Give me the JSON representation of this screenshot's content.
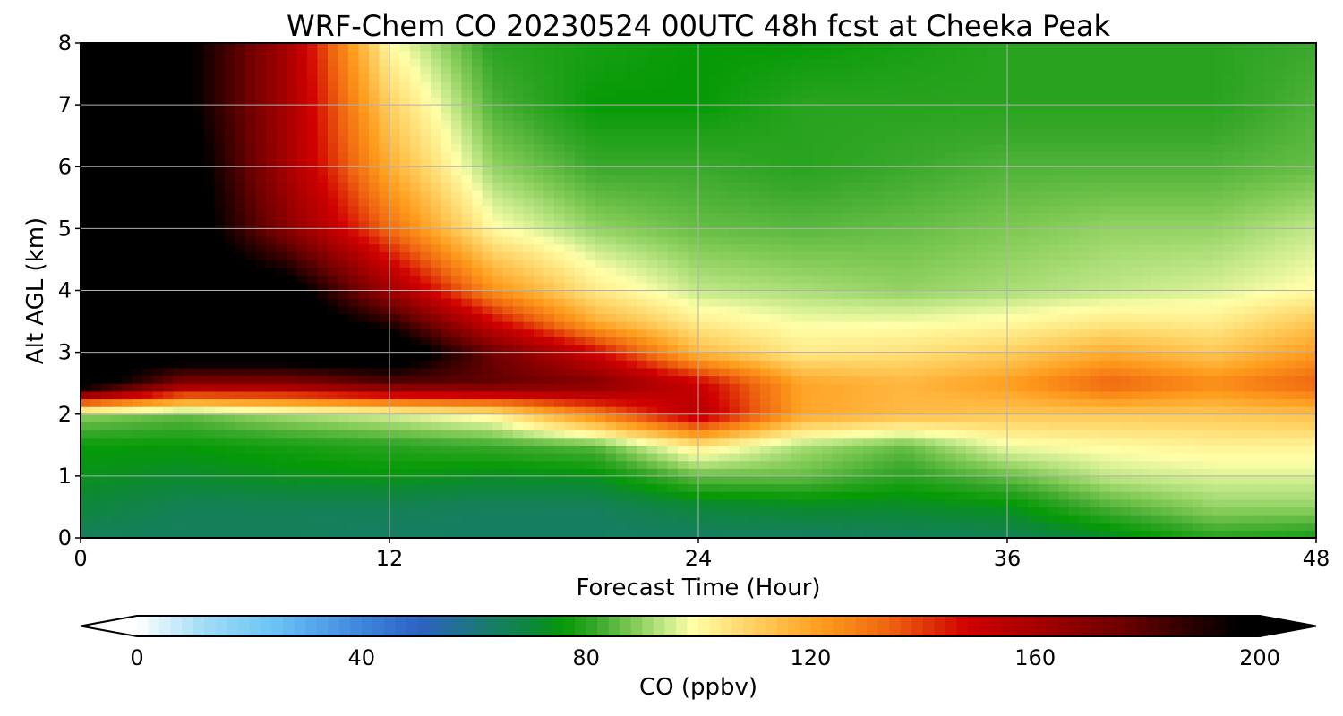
{
  "chart_data": {
    "type": "heatmap",
    "title": "WRF-Chem CO  20230524 00UTC 48h fcst at Cheeka Peak",
    "xlabel": "Forecast Time (Hour)",
    "ylabel": "Alt AGL (km)",
    "xlim": [
      0,
      48
    ],
    "ylim": [
      0,
      8
    ],
    "x_ticks": [
      0,
      12,
      24,
      36,
      48
    ],
    "y_ticks": [
      0,
      1,
      2,
      3,
      4,
      5,
      6,
      7,
      8
    ],
    "x_tick_labels": [
      "0",
      "12",
      "24",
      "36",
      "48"
    ],
    "y_tick_labels": [
      "0",
      "1",
      "2",
      "3",
      "4",
      "5",
      "6",
      "7",
      "8"
    ],
    "grid": true,
    "colorbar": {
      "label": "CO  (ppbv)",
      "min": 0,
      "max": 200,
      "ticks": [
        0,
        40,
        80,
        120,
        160,
        200
      ],
      "tick_labels": [
        "0",
        "40",
        "80",
        "120",
        "160",
        "200"
      ],
      "extend": "both",
      "orientation": "horizontal",
      "stops": [
        {
          "v": 0,
          "c": "#ffffff"
        },
        {
          "v": 12,
          "c": "#a0dcf5"
        },
        {
          "v": 24,
          "c": "#6cc5f6"
        },
        {
          "v": 40,
          "c": "#3f85dc"
        },
        {
          "v": 50,
          "c": "#2e62c2"
        },
        {
          "v": 62,
          "c": "#1a7a70"
        },
        {
          "v": 72,
          "c": "#0b8a2e"
        },
        {
          "v": 76,
          "c": "#069a06"
        },
        {
          "v": 82,
          "c": "#3aa82c"
        },
        {
          "v": 88,
          "c": "#7cc852"
        },
        {
          "v": 94,
          "c": "#c2e888"
        },
        {
          "v": 99,
          "c": "#ffffa8"
        },
        {
          "v": 110,
          "c": "#ffd060"
        },
        {
          "v": 122,
          "c": "#ff9c1c"
        },
        {
          "v": 134,
          "c": "#ee6410"
        },
        {
          "v": 148,
          "c": "#d00000"
        },
        {
          "v": 162,
          "c": "#a00000"
        },
        {
          "v": 176,
          "c": "#6a0000"
        },
        {
          "v": 188,
          "c": "#2a0000"
        },
        {
          "v": 196,
          "c": "#000000"
        }
      ]
    },
    "grid_x": [
      0,
      4,
      8,
      12,
      16,
      20,
      24,
      28,
      32,
      36,
      40,
      44,
      48
    ],
    "grid_y": [
      0,
      0.5,
      1,
      1.5,
      2,
      2.5,
      3,
      3.5,
      4,
      5,
      6,
      7,
      8
    ],
    "values": [
      [
        65,
        65,
        65,
        64,
        64,
        64,
        64,
        64,
        65,
        66,
        72,
        80,
        78
      ],
      [
        70,
        66,
        66,
        66,
        65,
        65,
        70,
        72,
        72,
        74,
        84,
        90,
        90
      ],
      [
        74,
        72,
        74,
        75,
        73,
        74,
        86,
        86,
        80,
        86,
        94,
        96,
        96
      ],
      [
        76,
        76,
        78,
        80,
        82,
        85,
        104,
        92,
        86,
        98,
        100,
        102,
        102
      ],
      [
        90,
        86,
        92,
        96,
        102,
        128,
        156,
        120,
        115,
        112,
        112,
        112,
        114
      ],
      [
        210,
        168,
        168,
        178,
        178,
        170,
        150,
        120,
        116,
        122,
        134,
        126,
        134
      ],
      [
        200,
        210,
        210,
        212,
        175,
        148,
        115,
        104,
        106,
        110,
        118,
        112,
        122
      ],
      [
        200,
        210,
        210,
        188,
        148,
        118,
        103,
        98,
        98,
        100,
        104,
        103,
        112
      ],
      [
        200,
        210,
        205,
        162,
        125,
        104,
        94,
        92,
        90,
        92,
        94,
        96,
        100
      ],
      [
        200,
        208,
        168,
        132,
        100,
        90,
        86,
        85,
        86,
        88,
        90,
        90,
        94
      ],
      [
        200,
        206,
        160,
        118,
        90,
        82,
        82,
        80,
        82,
        84,
        84,
        84,
        86
      ],
      [
        200,
        200,
        160,
        110,
        84,
        76,
        76,
        80,
        80,
        80,
        80,
        80,
        84
      ],
      [
        200,
        200,
        160,
        100,
        80,
        78,
        76,
        76,
        78,
        80,
        80,
        80,
        82
      ]
    ]
  }
}
